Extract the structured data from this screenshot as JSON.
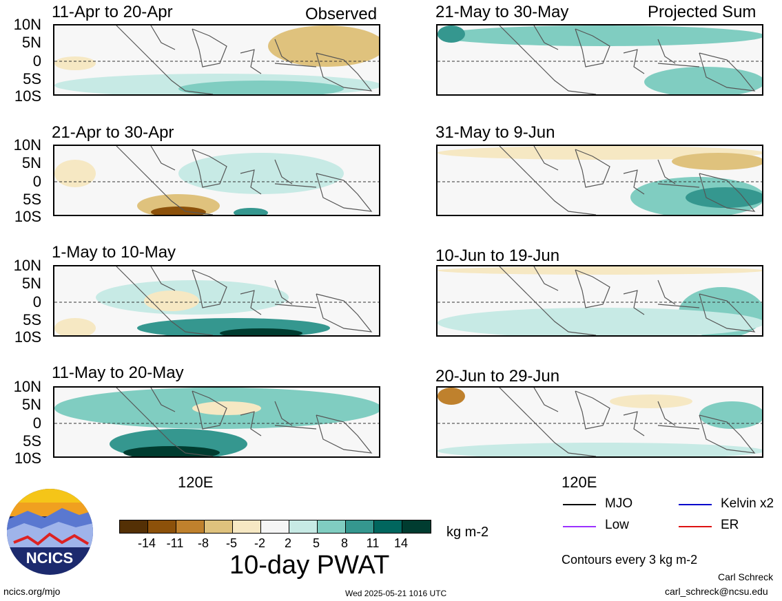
{
  "headers": {
    "observed": "Observed",
    "projected": "Projected Sum"
  },
  "panels_left": [
    {
      "title": "11-Apr to 20-Apr"
    },
    {
      "title": "21-Apr to 30-Apr"
    },
    {
      "title": "1-May to 10-May"
    },
    {
      "title": "11-May to 20-May"
    }
  ],
  "panels_right": [
    {
      "title": "21-May to 30-May"
    },
    {
      "title": "31-May to 9-Jun"
    },
    {
      "title": "10-Jun to 19-Jun"
    },
    {
      "title": "20-Jun to 29-Jun"
    }
  ],
  "lat_labels": [
    "10N",
    "5N",
    "0",
    "5S",
    "10S"
  ],
  "lon_label": "120E",
  "colorbar": {
    "colors": [
      "#543005",
      "#8c510a",
      "#bf812d",
      "#dfc27d",
      "#f6e8c3",
      "#f5f5f5",
      "#c7eae5",
      "#80cdc1",
      "#35978f",
      "#01665e",
      "#003c30"
    ],
    "ticks": [
      "-14",
      "-11",
      "-8",
      "-5",
      "-2",
      "2",
      "5",
      "8",
      "11",
      "14"
    ],
    "units": "kg m-2",
    "title": "10-day PWAT"
  },
  "legend": {
    "items": [
      {
        "label": "MJO",
        "color": "#000000"
      },
      {
        "label": "Kelvin x2",
        "color": "#0000cc"
      },
      {
        "label": "Low",
        "color": "#9b30ff"
      },
      {
        "label": "ER",
        "color": "#dd1111"
      }
    ],
    "contour_note": "Contours every 3 kg m-2"
  },
  "footer": {
    "site": "ncics.org/mjo",
    "timestamp": "Wed 2025-05-21 1016 UTC",
    "author": "Carl Schreck",
    "email": "carl_schreck@ncsu.edu"
  },
  "logo_text": "NCICS"
}
